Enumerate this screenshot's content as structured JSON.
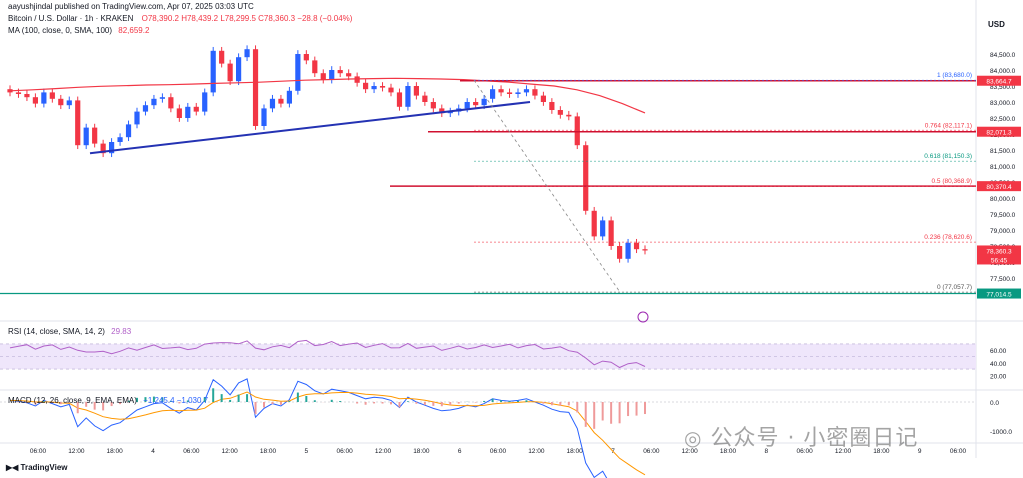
{
  "header": {
    "publish_line": "aayushjindal published on TradingView.com, Apr 07, 2025 03:03 UTC",
    "symbol": "Bitcoin / U.S. Dollar · 1h · KRAKEN",
    "ohlc": "O78,390.2  H78,439.2  L78,299.5  C78,360.3  −28.8 (−0.04%)",
    "ma_label": "MA (100, close, 0, SMA, 100)",
    "ma_value": "82,659.2",
    "rsi_label": "RSI (14, close, SMA, 14, 2)",
    "rsi_value": "29.83",
    "macd_label": "MACD (12, 26, close, 9, EMA, EMA)",
    "macd_values": "−1,245.4  −1,030.7",
    "currency": "USD",
    "footer": "TradingView",
    "watermark": "公众号 · 小密圈日记"
  },
  "chart_data": {
    "type": "candlestick",
    "title": "Bitcoin / U.S. Dollar · 1h · KRAKEN",
    "ylabel": "USD",
    "ylim": [
      76250,
      85250
    ],
    "y_ticks": [
      77000,
      77500,
      78000,
      78500,
      79000,
      79500,
      80000,
      80500,
      81000,
      81500,
      82000,
      82500,
      83000,
      83500,
      84000,
      84500
    ],
    "x_ticks": [
      "06:00",
      "12:00",
      "18:00",
      "4",
      "06:00",
      "12:00",
      "18:00",
      "5",
      "06:00",
      "12:00",
      "18:00",
      "6",
      "06:00",
      "12:00",
      "18:00",
      "7",
      "06:00",
      "12:00",
      "18:00",
      "8",
      "06:00",
      "12:00",
      "18:00",
      "9",
      "06:00"
    ],
    "ohlc_close_path": [
      83300,
      83250,
      83150,
      82950,
      83300,
      83100,
      82900,
      83050,
      81650,
      82200,
      81700,
      81400,
      81750,
      81900,
      82300,
      82700,
      82900,
      83100,
      83150,
      82800,
      82500,
      82850,
      82700,
      83300,
      84600,
      84200,
      83650,
      84400,
      84650,
      82250,
      82800,
      83100,
      82950,
      83350,
      84500,
      84300,
      83900,
      83700,
      84000,
      83900,
      83800,
      83600,
      83400,
      83500,
      83450,
      83300,
      82850,
      83500,
      83200,
      83000,
      82800,
      82650,
      82700,
      82800,
      83000,
      82900,
      83100,
      83400,
      83300,
      83250,
      83300,
      83400,
      83200,
      83000,
      82750,
      82600,
      82550,
      81650,
      79600,
      78800,
      79300,
      78500,
      78100,
      78600,
      78400,
      78360
    ],
    "ma_line": [
      83350,
      83380,
      83420,
      83460,
      83490,
      83510,
      83530,
      83540,
      83560,
      83580,
      83600,
      83620,
      83650,
      83680,
      83700,
      83720,
      83730,
      83740,
      83730,
      83720,
      83700,
      83660,
      83620,
      83560,
      83500,
      83380,
      83200,
      82950,
      82659
    ],
    "rsi": {
      "value": 29.83,
      "levels": [
        70,
        50,
        30
      ],
      "ticks": [
        60,
        40,
        20
      ]
    },
    "macd": {
      "values": [
        -1245.4,
        -1030.7
      ],
      "ticks": [
        0.0,
        -1000.0
      ]
    },
    "price_labels": [
      {
        "value": "83,664.7",
        "color": "#f23645"
      },
      {
        "value": "82,071.3",
        "color": "#f23645"
      },
      {
        "value": "80,370.4",
        "color": "#f23645"
      },
      {
        "value": "78,360.3",
        "color": "#f23645"
      },
      {
        "value": "56:45",
        "color": "#f23645"
      },
      {
        "value": "77,014.5",
        "color": "#089981"
      }
    ],
    "fib_levels": [
      {
        "label": "1 (83,680.0)",
        "value": 83680,
        "color": "#2962ff"
      },
      {
        "label": "0.764 (82,117.1)",
        "value": 82117,
        "color": "#f23645"
      },
      {
        "label": "0.618 (81,150.3)",
        "value": 81150,
        "color": "#089981"
      },
      {
        "label": "0.5 (80,368.9)",
        "value": 80369,
        "color": "#f23645"
      },
      {
        "label": "0.236 (78,620.6)",
        "value": 78621,
        "color": "#f23645"
      },
      {
        "label": "0 (77,057.7)",
        "value": 77058,
        "color": "#555555"
      }
    ],
    "resistance_lines": [
      83665,
      82071,
      80370
    ],
    "support_line": 77014.5,
    "trendline": {
      "from": 81400,
      "to": 83000
    },
    "colors": {
      "up": "#2962ff",
      "down": "#f23645",
      "ma": "#f23645",
      "trend": "#2432b3",
      "support": "#089981",
      "rsi": "#b060c8",
      "rsi_bg": "#efe6fb",
      "macd": "#2962ff",
      "signal": "#ff9800"
    }
  }
}
